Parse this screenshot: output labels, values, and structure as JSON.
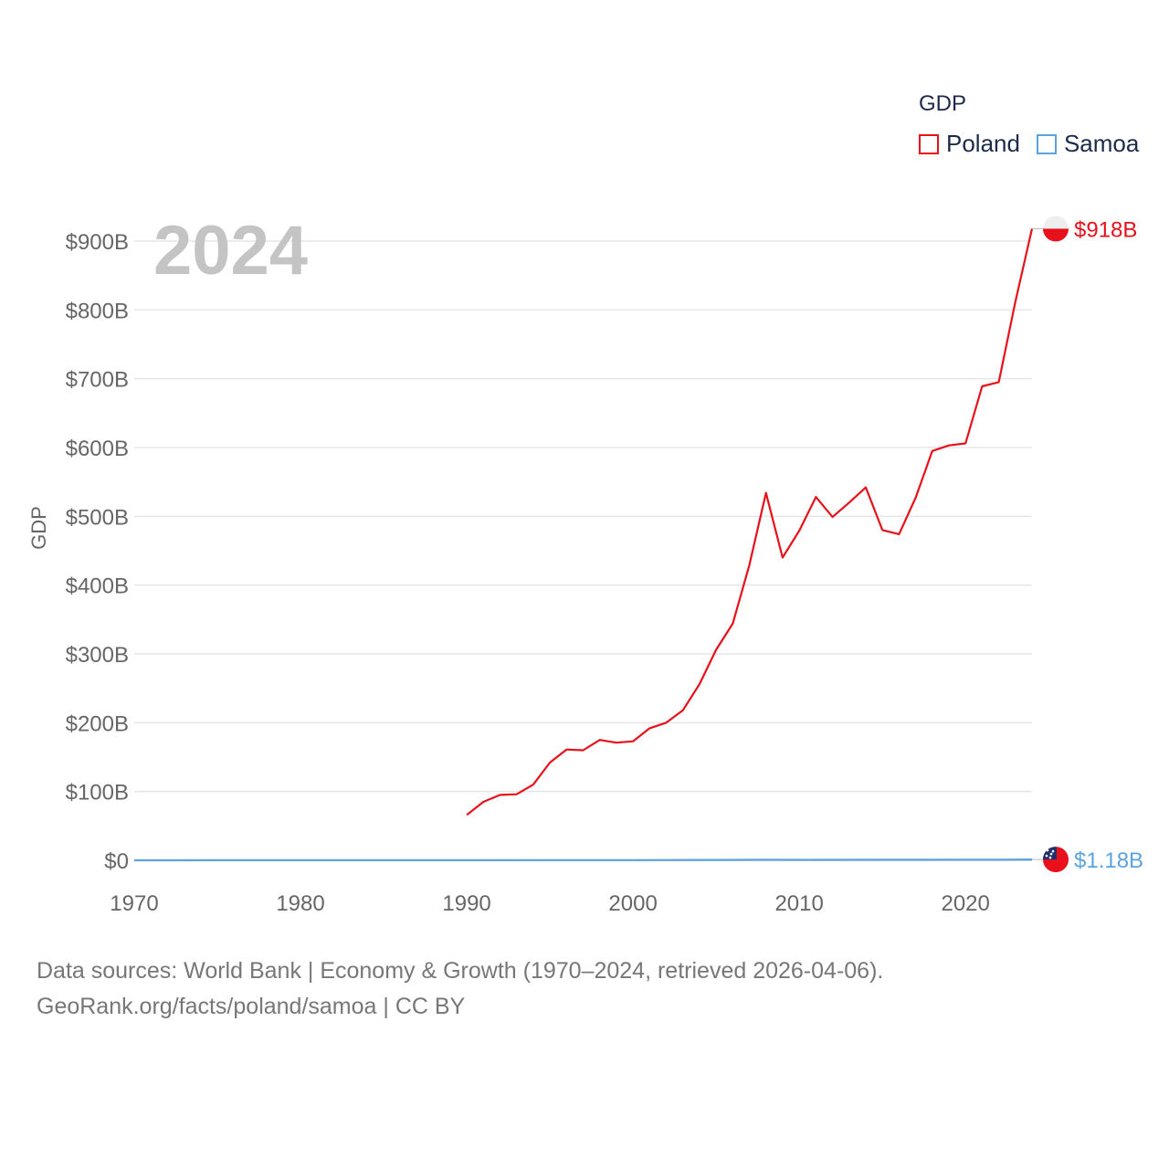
{
  "chart_data": {
    "type": "line",
    "year_label": "2024",
    "ylabel": "GDP",
    "xlim": [
      1970,
      2024
    ],
    "ylim": [
      0,
      900
    ],
    "y_unit": "billion USD",
    "x_ticks": [
      "1970",
      "1980",
      "1990",
      "2000",
      "2010",
      "2020"
    ],
    "y_ticks": [
      "$0",
      "$100B",
      "$200B",
      "$300B",
      "$400B",
      "$500B",
      "$600B",
      "$700B",
      "$800B",
      "$900B"
    ],
    "legend_title": "GDP",
    "legend_position": "top-right",
    "series": [
      {
        "name": "Poland",
        "color": "#e8111b",
        "end_label": "$918B",
        "flag_icon": "poland-flag-icon",
        "x": [
          1990,
          1991,
          1992,
          1993,
          1994,
          1995,
          1996,
          1997,
          1998,
          1999,
          2000,
          2001,
          2002,
          2003,
          2004,
          2005,
          2006,
          2007,
          2008,
          2009,
          2010,
          2011,
          2012,
          2013,
          2014,
          2015,
          2016,
          2017,
          2018,
          2019,
          2020,
          2021,
          2022,
          2023,
          2024
        ],
        "values": [
          66,
          85,
          95,
          96,
          110,
          142,
          161,
          160,
          175,
          171,
          173,
          192,
          200,
          218,
          256,
          306,
          344,
          429,
          534,
          440,
          479,
          528,
          499,
          520,
          542,
          480,
          474,
          527,
          595,
          603,
          606,
          689,
          695,
          812,
          918
        ]
      },
      {
        "name": "Samoa",
        "color": "#5aa3e0",
        "end_label": "$1.18B",
        "flag_icon": "samoa-flag-icon",
        "x": [
          1970,
          1975,
          1980,
          1985,
          1990,
          1995,
          2000,
          2005,
          2008,
          2010,
          2015,
          2020,
          2022,
          2023,
          2024
        ],
        "values": [
          0.05,
          0.08,
          0.12,
          0.1,
          0.12,
          0.2,
          0.26,
          0.5,
          0.74,
          0.69,
          0.85,
          0.9,
          0.87,
          1.0,
          1.18
        ]
      }
    ]
  },
  "footer": {
    "sources_line1": "Data sources: World Bank | Economy & Growth (1970–2024, retrieved 2026-04-06).",
    "sources_line2": "GeoRank.org/facts/poland/samoa | CC BY"
  }
}
